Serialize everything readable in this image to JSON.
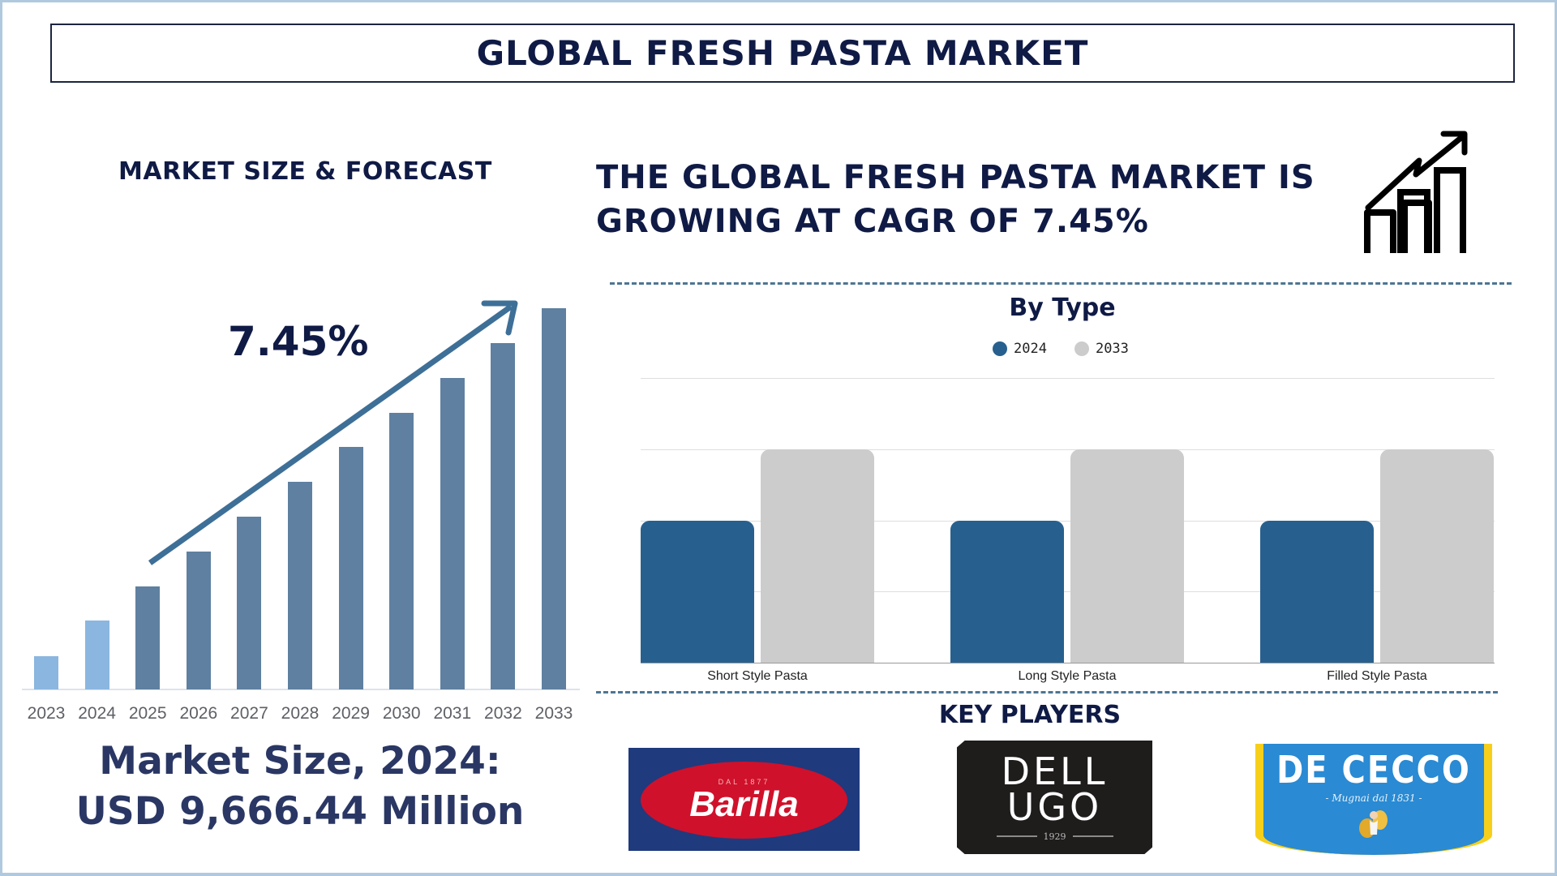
{
  "header": {
    "title": "GLOBAL FRESH PASTA MARKET"
  },
  "left_panel": {
    "heading": "MARKET SIZE & FORECAST",
    "cagr_label": "7.45%",
    "market_size_line1": "Market Size, 2024:",
    "market_size_line2": "USD 9,666.44 Million"
  },
  "right_panel": {
    "headline_line1": "THE GLOBAL FRESH PASTA MARKET IS",
    "headline_line2": "GROWING AT CAGR OF 7.45%",
    "icon": "growth-chart-icon"
  },
  "key_players": {
    "heading": "KEY PLAYERS",
    "logos": [
      {
        "name": "Barilla",
        "tagline": "DAL 1877"
      },
      {
        "name_line1": "DELL",
        "name_line2": "UGO",
        "year": "1929"
      },
      {
        "name": "DE CECCO",
        "tagline": "- Mugnai dal 1831 -"
      }
    ]
  },
  "colors": {
    "title_navy": "#0f1a45",
    "forecast_bar": "#5f80a0",
    "historic_bar": "#8bb6e0",
    "series_2024": "#27608e",
    "series_2033": "#cccccc",
    "arrow": "#3e6f97"
  },
  "chart_data": [
    {
      "type": "bar",
      "title": "MARKET SIZE & FORECAST",
      "annotation": "7.45%",
      "categories": [
        "2023",
        "2024",
        "2025",
        "2026",
        "2027",
        "2028",
        "2029",
        "2030",
        "2031",
        "2032",
        "2033"
      ],
      "values": [
        41,
        85,
        127,
        170,
        213,
        256,
        299,
        341,
        384,
        427,
        470
      ],
      "value_unit": "relative bar height (no axis shown)",
      "historic_categories": [
        "2023",
        "2024"
      ],
      "xlabel": "",
      "ylabel": "",
      "grid": false,
      "legend": "none"
    },
    {
      "type": "bar",
      "title": "By Type",
      "categories": [
        "Short Style Pasta",
        "Long Style Pasta",
        "Filled Style Pasta"
      ],
      "series": [
        {
          "name": "2024",
          "values": [
            2,
            2,
            2
          ]
        },
        {
          "name": "2033",
          "values": [
            3,
            3,
            3
          ]
        }
      ],
      "ylim": [
        0,
        4
      ],
      "value_unit": "gridline units (no axis labels shown)",
      "grid": true,
      "legend": "top-center"
    }
  ]
}
